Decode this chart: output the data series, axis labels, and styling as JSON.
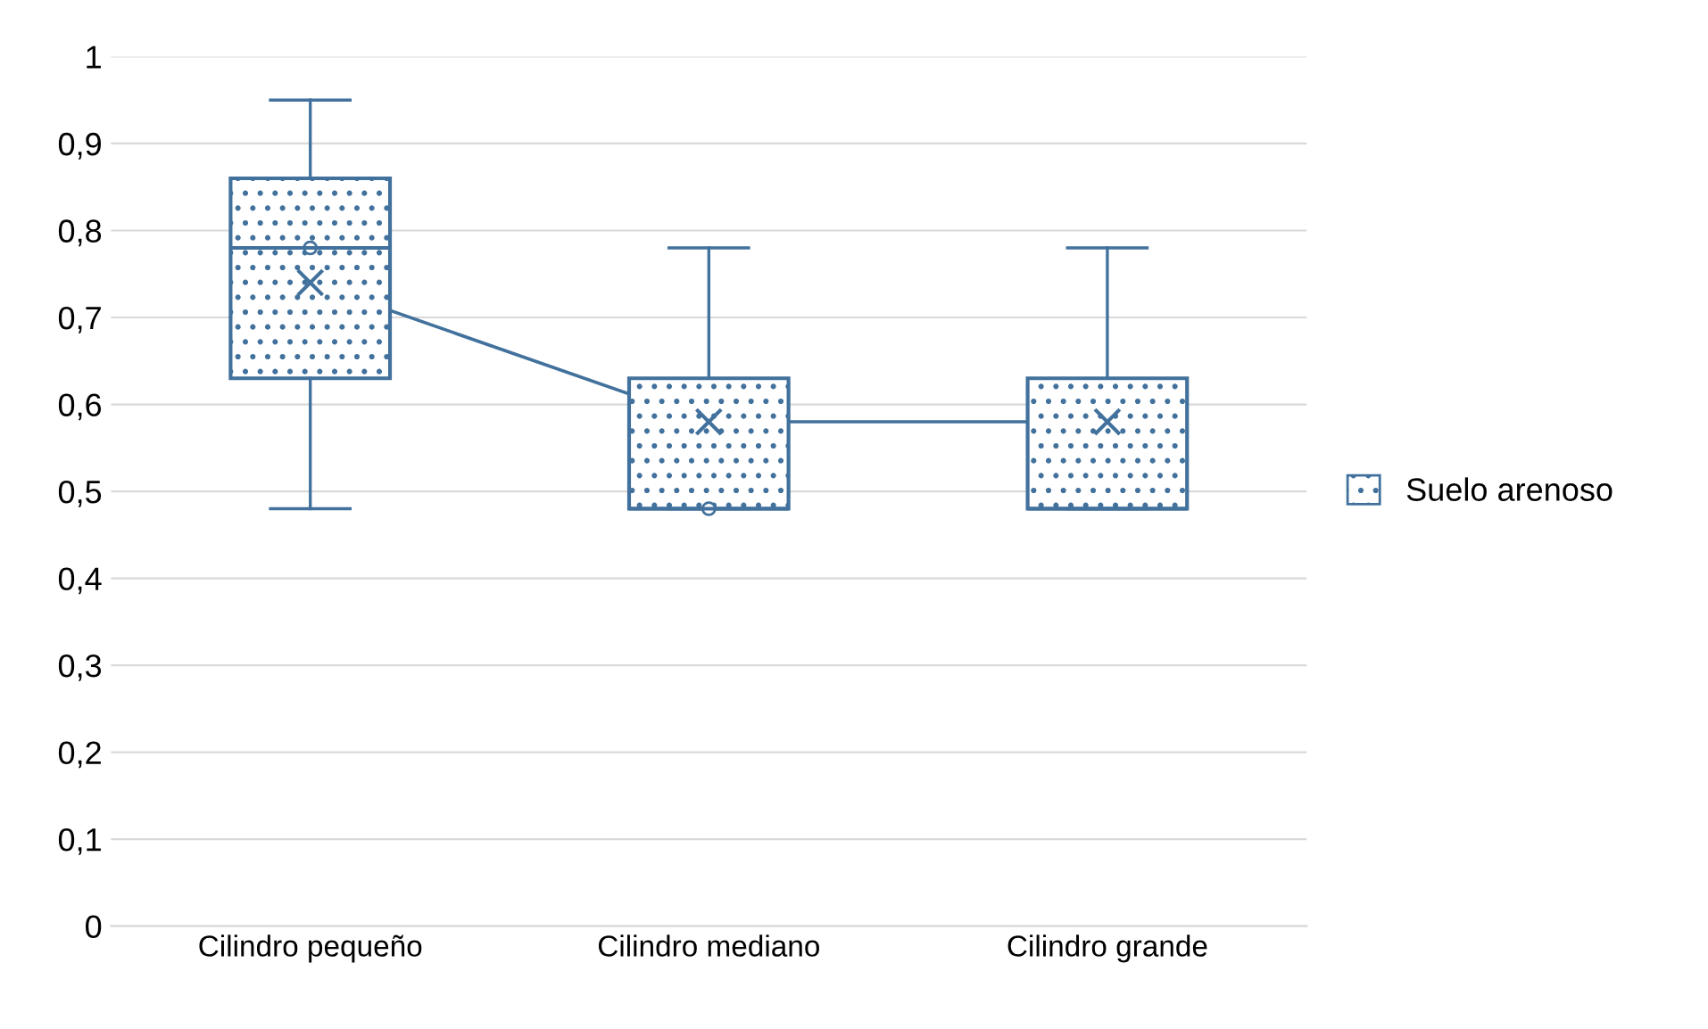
{
  "chart_data": {
    "type": "box",
    "categories": [
      "Cilindro pequeño",
      "Cilindro mediano",
      "Cilindro grande"
    ],
    "series": [
      {
        "name": "Suelo arenoso",
        "color": "#41719c",
        "boxes": [
          {
            "low": 0.48,
            "q1": 0.63,
            "median": 0.78,
            "q3": 0.86,
            "high": 0.95,
            "mean": 0.74,
            "outliers": [
              0.78
            ]
          },
          {
            "low": 0.48,
            "q1": 0.48,
            "median": 0.48,
            "q3": 0.63,
            "high": 0.78,
            "mean": 0.58,
            "outliers": [
              0.48
            ]
          },
          {
            "low": 0.48,
            "q1": 0.48,
            "median": 0.48,
            "q3": 0.63,
            "high": 0.78,
            "mean": 0.58
          }
        ]
      },
      {
        "type": "line",
        "color": "#41719c",
        "values": [
          0.74,
          0.58,
          0.58
        ]
      }
    ],
    "ylim": [
      0,
      1
    ],
    "yticks": [
      0,
      {
        "value": 0.1,
        "label": "0,1"
      },
      {
        "value": 0.2,
        "label": "0,2"
      },
      {
        "value": 0.3,
        "label": "0,3"
      },
      {
        "value": 0.4,
        "label": "0,4"
      },
      {
        "value": 0.5,
        "label": "0,5"
      },
      {
        "value": 0.6,
        "label": "0,6"
      },
      {
        "value": 0.7,
        "label": "0,7"
      },
      {
        "value": 0.8,
        "label": "0,8"
      },
      {
        "value": 0.9,
        "label": "0,9"
      },
      1
    ],
    "grid": "y",
    "legend": "right"
  }
}
